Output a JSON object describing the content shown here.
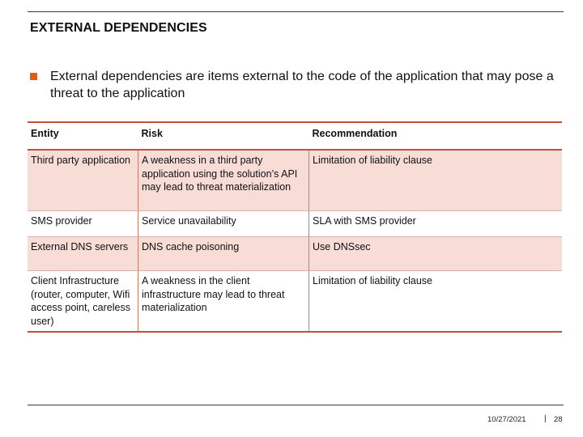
{
  "slide": {
    "title": "EXTERNAL DEPENDENCIES",
    "bullet": "External dependencies are items external to the code of the application that may pose a threat to the application",
    "accent_color": "#e8590c",
    "table_rule_color": "#c0503a",
    "row_shade_color": "#f8dcd6"
  },
  "table": {
    "headers": [
      "Entity",
      "Risk",
      "Recommendation"
    ],
    "rows": [
      {
        "entity": "Third party application",
        "risk": "A weakness in a third party application using the solution’s API may lead to threat materialization",
        "recommendation": "Limitation of liability clause"
      },
      {
        "entity": "SMS provider",
        "risk": "Service unavailability",
        "recommendation": "SLA with SMS provider"
      },
      {
        "entity": "External DNS servers",
        "risk": "DNS cache poisoning",
        "recommendation": "Use DNSsec"
      },
      {
        "entity": "Client Infrastructure (router, computer, Wifi access point, careless user)",
        "risk": "A weakness in the client infrastructure may lead to threat materialization",
        "recommendation": "Limitation of liability clause"
      }
    ]
  },
  "footer": {
    "date": "10/27/2021",
    "separator": "|",
    "page": "28"
  }
}
